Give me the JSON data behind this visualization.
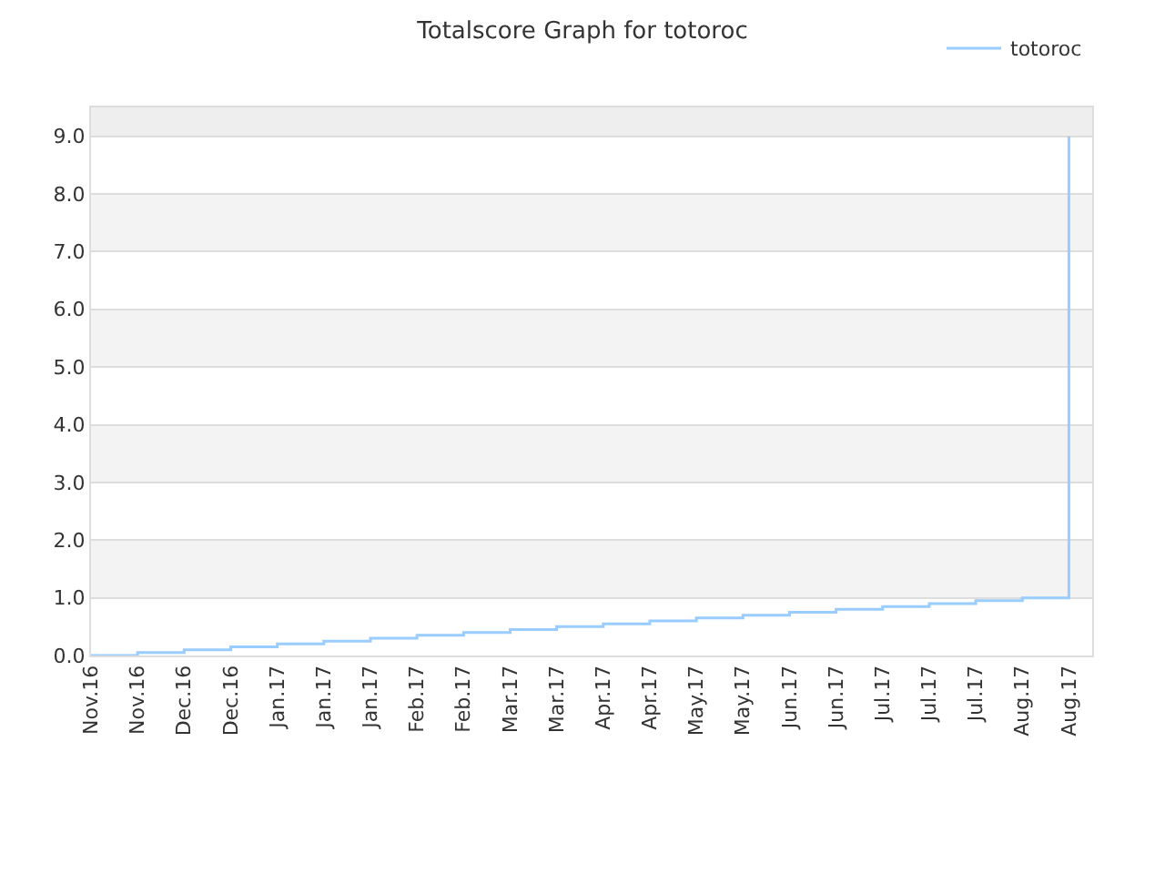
{
  "chart_data": {
    "type": "step",
    "title": "Totalscore Graph for totoroc",
    "categories": [
      "Nov.16",
      "Nov.16",
      "Dec.16",
      "Dec.16",
      "Jan.17",
      "Jan.17",
      "Jan.17",
      "Feb.17",
      "Feb.17",
      "Mar.17",
      "Mar.17",
      "Apr.17",
      "Apr.17",
      "May.17",
      "May.17",
      "Jun.17",
      "Jun.17",
      "Jul.17",
      "Jul.17",
      "Jul.17",
      "Aug.17",
      "Aug.17"
    ],
    "series": [
      {
        "name": "totoroc",
        "color": "#99ccff",
        "values": [
          0.0,
          0.05,
          0.1,
          0.15,
          0.2,
          0.25,
          0.3,
          0.35,
          0.4,
          0.45,
          0.5,
          0.55,
          0.6,
          0.65,
          0.7,
          0.75,
          0.8,
          0.85,
          0.9,
          0.95,
          1.0,
          9.0
        ]
      }
    ],
    "ylim": [
      0,
      9.5
    ],
    "yticks": [
      {
        "value": 0,
        "label": "0.0"
      },
      {
        "value": 1,
        "label": "1.0"
      },
      {
        "value": 2,
        "label": "2.0"
      },
      {
        "value": 3,
        "label": "3.0"
      },
      {
        "value": 4,
        "label": "4.0"
      },
      {
        "value": 5,
        "label": "5.0"
      },
      {
        "value": 6,
        "label": "6.0"
      },
      {
        "value": 7,
        "label": "7.0"
      },
      {
        "value": 8,
        "label": "8.0"
      },
      {
        "value": 9,
        "label": "9.0"
      }
    ],
    "bands": [
      {
        "axis": "y",
        "from": 1,
        "to": 2,
        "color": "#f3f3f3"
      },
      {
        "axis": "y",
        "from": 3,
        "to": 4,
        "color": "#f3f3f3"
      },
      {
        "axis": "y",
        "from": 5,
        "to": 6,
        "color": "#f3f3f3"
      },
      {
        "axis": "y",
        "from": 7,
        "to": 8,
        "color": "#f3f3f3"
      },
      {
        "axis": "y",
        "from": 9,
        "to": 9.5,
        "color": "#eeeeee"
      }
    ],
    "grid": "y",
    "legend": "top right",
    "marker": "none",
    "line_style": "solid"
  }
}
